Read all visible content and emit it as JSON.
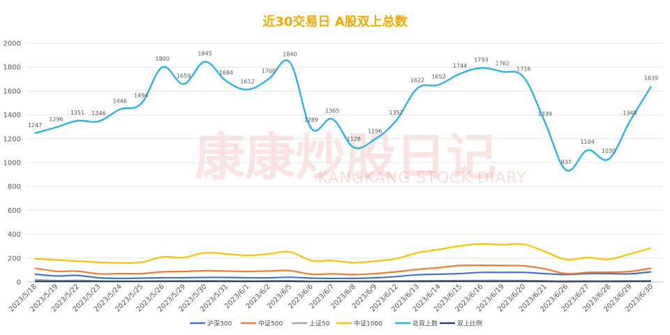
{
  "chart_data": {
    "type": "line",
    "title": "近30交易日 A股双上总数",
    "xlabel": "",
    "ylabel": "",
    "ylim": [
      0,
      2000
    ],
    "yticks": [
      0,
      200,
      400,
      600,
      800,
      1000,
      1200,
      1400,
      1600,
      1800,
      2000
    ],
    "grid": true,
    "legend_position": "bottom",
    "categories": [
      "2023/5/18",
      "2023/5/19",
      "2023/5/22",
      "2023/5/23",
      "2023/5/24",
      "2023/5/25",
      "2023/5/26",
      "2023/5/29",
      "2023/5/30",
      "2023/5/31",
      "2023/6/1",
      "2023/6/2",
      "2023/6/5",
      "2023/6/6",
      "2023/6/7",
      "2023/6/8",
      "2023/6/9",
      "2023/6/12",
      "2023/6/13",
      "2023/6/14",
      "2023/6/15",
      "2023/6/16",
      "2023/6/19",
      "2023/6/20",
      "2023/6/21",
      "2023/6/26",
      "2023/6/27",
      "2023/6/28",
      "2023/6/29",
      "2023/6/30"
    ],
    "series": [
      {
        "name": "沪深300",
        "color": "#4472c4",
        "values": [
          65,
          50,
          55,
          35,
          30,
          32,
          35,
          35,
          38,
          38,
          35,
          35,
          40,
          32,
          30,
          30,
          35,
          45,
          60,
          65,
          70,
          80,
          80,
          80,
          70,
          62,
          70,
          70,
          68,
          85
        ]
      },
      {
        "name": "中证500",
        "color": "#ed7d31",
        "values": [
          115,
          90,
          90,
          68,
          70,
          70,
          85,
          88,
          95,
          92,
          88,
          92,
          95,
          65,
          68,
          62,
          70,
          85,
          105,
          120,
          138,
          140,
          138,
          135,
          110,
          70,
          80,
          82,
          88,
          115
        ]
      },
      {
        "name": "上证50",
        "color": "#a5a5a5",
        "values": [
          20,
          12,
          14,
          8,
          6,
          7,
          8,
          8,
          10,
          9,
          8,
          9,
          10,
          6,
          6,
          6,
          7,
          8,
          10,
          11,
          12,
          13,
          13,
          12,
          10,
          8,
          9,
          9,
          9,
          10
        ]
      },
      {
        "name": "中证1000",
        "color": "#ffc000",
        "values": [
          195,
          185,
          175,
          165,
          160,
          165,
          210,
          205,
          245,
          235,
          222,
          235,
          252,
          180,
          180,
          162,
          175,
          195,
          245,
          272,
          302,
          318,
          312,
          315,
          255,
          188,
          205,
          190,
          235,
          285
        ]
      },
      {
        "name": "总双上数",
        "color": "#28b4e8",
        "values": [
          1247,
          1296,
          1351,
          1346,
          1446,
          1494,
          1800,
          1659,
          1845,
          1684,
          1612,
          1700,
          1840,
          1289,
          1365,
          1128,
          1196,
          1352,
          1622,
          1652,
          1744,
          1793,
          1762,
          1716,
          1339,
          937,
          1104,
          1030,
          1348,
          1639
        ],
        "labels": true
      },
      {
        "name": "双上比例",
        "color": "#264478",
        "values": [
          5,
          5,
          5,
          5,
          5,
          5,
          6,
          6,
          6,
          6,
          5,
          6,
          6,
          4,
          5,
          4,
          4,
          5,
          5,
          6,
          6,
          6,
          6,
          6,
          5,
          3,
          4,
          4,
          5,
          6
        ]
      }
    ]
  },
  "watermark": {
    "main": "康康炒股日记",
    "sub": "KANGKANG STOCK DIARY"
  }
}
